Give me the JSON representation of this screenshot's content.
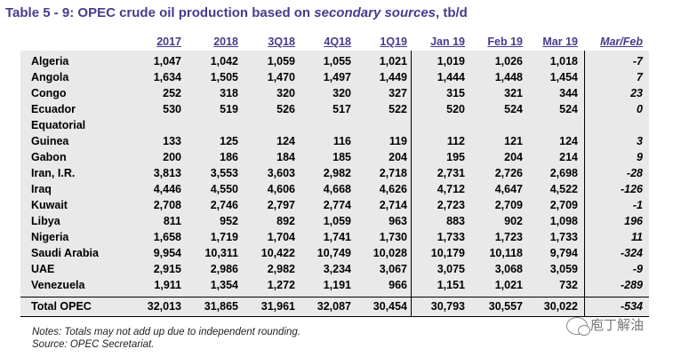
{
  "title": {
    "prefix": "Table 5 - 9: OPEC crude oil production based on ",
    "italic": "secondary sources",
    "suffix": ", tb/d"
  },
  "headers": [
    "2017",
    "2018",
    "3Q18",
    "4Q18",
    "1Q19",
    "Jan 19",
    "Feb 19",
    "Mar 19",
    "Mar/Feb"
  ],
  "rows": [
    {
      "name": "Algeria",
      "values": [
        "1,047",
        "1,042",
        "1,059",
        "1,055",
        "1,021",
        "1,019",
        "1,026",
        "1,018",
        "-7"
      ]
    },
    {
      "name": "Angola",
      "values": [
        "1,634",
        "1,505",
        "1,470",
        "1,497",
        "1,449",
        "1,444",
        "1,448",
        "1,454",
        "7"
      ]
    },
    {
      "name": "Congo",
      "values": [
        "252",
        "318",
        "320",
        "320",
        "327",
        "315",
        "321",
        "344",
        "23"
      ]
    },
    {
      "name": "Ecuador",
      "values": [
        "530",
        "519",
        "526",
        "517",
        "522",
        "520",
        "524",
        "524",
        "0"
      ]
    },
    {
      "name": "Equatorial",
      "values": [
        "",
        "",
        "",
        "",
        "",
        "",
        "",
        "",
        ""
      ]
    },
    {
      "name": "Guinea",
      "values": [
        "133",
        "125",
        "124",
        "116",
        "119",
        "112",
        "121",
        "124",
        "3"
      ]
    },
    {
      "name": "Gabon",
      "values": [
        "200",
        "186",
        "184",
        "185",
        "204",
        "195",
        "204",
        "214",
        "9"
      ]
    },
    {
      "name": "Iran, I.R.",
      "values": [
        "3,813",
        "3,553",
        "3,603",
        "2,982",
        "2,718",
        "2,731",
        "2,726",
        "2,698",
        "-28"
      ]
    },
    {
      "name": "Iraq",
      "values": [
        "4,446",
        "4,550",
        "4,606",
        "4,668",
        "4,626",
        "4,712",
        "4,647",
        "4,522",
        "-126"
      ]
    },
    {
      "name": "Kuwait",
      "values": [
        "2,708",
        "2,746",
        "2,797",
        "2,774",
        "2,714",
        "2,723",
        "2,709",
        "2,709",
        "-1"
      ]
    },
    {
      "name": "Libya",
      "values": [
        "811",
        "952",
        "892",
        "1,059",
        "963",
        "883",
        "902",
        "1,098",
        "196"
      ]
    },
    {
      "name": "Nigeria",
      "values": [
        "1,658",
        "1,719",
        "1,704",
        "1,741",
        "1,730",
        "1,733",
        "1,723",
        "1,733",
        "11"
      ]
    },
    {
      "name": "Saudi Arabia",
      "values": [
        "9,954",
        "10,311",
        "10,422",
        "10,749",
        "10,028",
        "10,179",
        "10,118",
        "9,794",
        "-324"
      ]
    },
    {
      "name": "UAE",
      "values": [
        "2,915",
        "2,986",
        "2,982",
        "3,234",
        "3,067",
        "3,075",
        "3,068",
        "3,059",
        "-9"
      ]
    },
    {
      "name": "Venezuela",
      "values": [
        "1,911",
        "1,354",
        "1,272",
        "1,191",
        "966",
        "1,151",
        "1,021",
        "732",
        "-289"
      ]
    }
  ],
  "total": {
    "name": "Total  OPEC",
    "values": [
      "32,013",
      "31,865",
      "31,961",
      "32,087",
      "30,454",
      "30,793",
      "30,557",
      "30,022",
      "-534"
    ]
  },
  "notes": [
    "Notes: Totals may not add up due to independent rounding.",
    "Source: OPEC Secretariat."
  ],
  "watermark": "庖丁解油"
}
